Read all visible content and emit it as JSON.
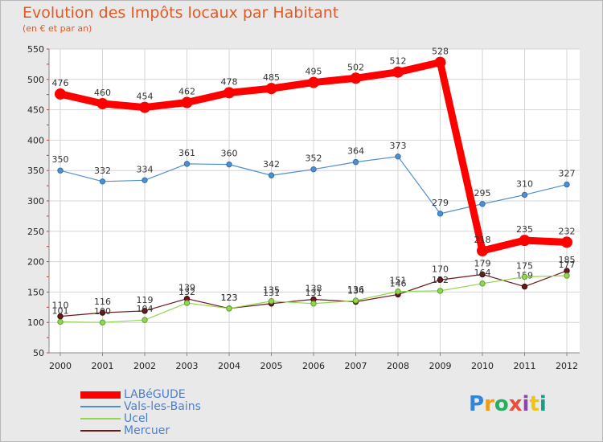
{
  "chart_data": {
    "type": "line",
    "title": "Evolution des Impôts locaux par Habitant",
    "subtitle": "(en € et par an)",
    "categories": [
      "2000",
      "2001",
      "2002",
      "2003",
      "2004",
      "2005",
      "2006",
      "2007",
      "2008",
      "2009",
      "2010",
      "2011",
      "2012"
    ],
    "yticks": [
      50,
      100,
      150,
      200,
      250,
      300,
      350,
      400,
      450,
      500,
      550
    ],
    "ylim": [
      50,
      550
    ],
    "series": [
      {
        "name": "LABéGUDE",
        "color": "#ff0000",
        "values": [
          476,
          460,
          454,
          462,
          478,
          485,
          495,
          502,
          512,
          528,
          218,
          235,
          232
        ],
        "labels": [
          "476",
          "460",
          "454",
          "462",
          "478",
          "485",
          "495",
          "502",
          "512",
          "528",
          "218",
          "235",
          "232"
        ]
      },
      {
        "name": "Vals-les-Bains",
        "color": "#4f8fcf",
        "values": [
          350,
          332,
          334,
          361,
          360,
          342,
          352,
          364,
          373,
          279,
          295,
          310,
          327
        ],
        "labels": [
          "350",
          "332",
          "334",
          "361",
          "360",
          "342",
          "352",
          "364",
          "373",
          "279",
          "295",
          "310",
          "327"
        ]
      },
      {
        "name": "Ucel",
        "color": "#92d650",
        "values": [
          101,
          100,
          104,
          132,
          123,
          135,
          131,
          136,
          151,
          152,
          164,
          175,
          177
        ],
        "labels": [
          "101",
          "100",
          "104",
          "132",
          "123",
          "135",
          "131",
          "136",
          "151",
          "152",
          "164",
          "175",
          "177"
        ]
      },
      {
        "name": "Mercuer",
        "color": "#6b1a1a",
        "values": [
          110,
          116,
          119,
          139,
          123,
          131,
          138,
          134,
          146,
          170,
          179,
          159,
          185
        ],
        "labels": [
          "110",
          "116",
          "119",
          "139",
          "123",
          "131",
          "138",
          "134",
          "146",
          "170",
          "179",
          "159",
          "185"
        ]
      }
    ]
  },
  "logo_text": "Proxiti"
}
